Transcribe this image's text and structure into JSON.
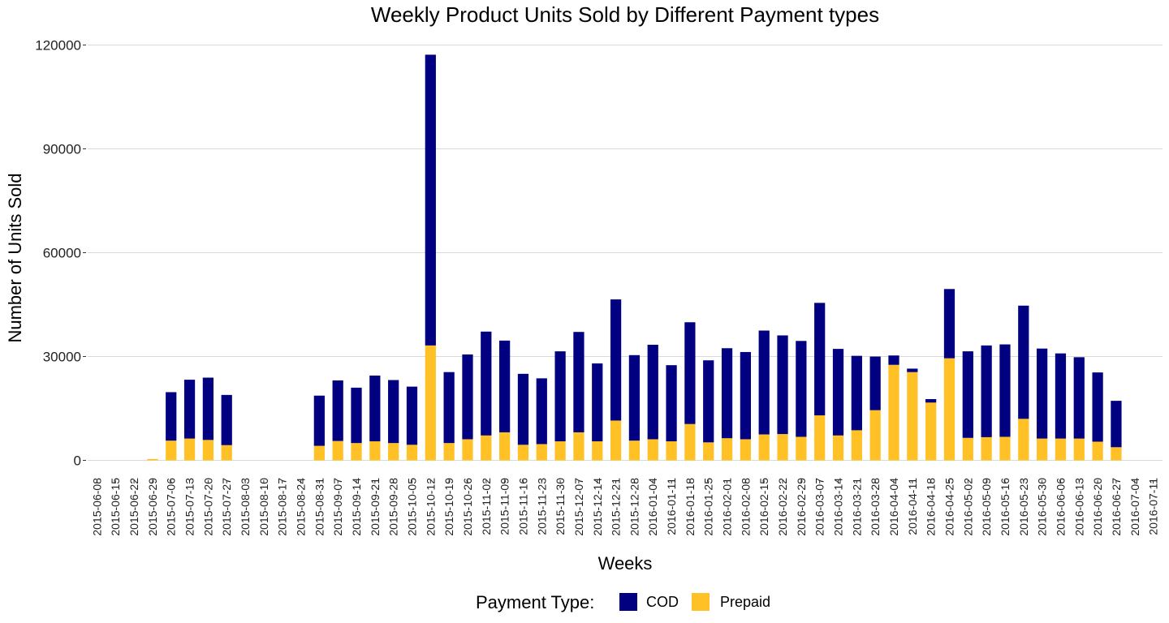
{
  "chart_data": {
    "type": "bar",
    "stacked": true,
    "title": "Weekly Product Units Sold by Different Payment types",
    "xlabel": "Weeks",
    "ylabel": "Number of Units Sold",
    "ylim": [
      0,
      120000
    ],
    "yticks": [
      0,
      30000,
      60000,
      90000,
      120000
    ],
    "grid": "horizontal",
    "legend": {
      "title": "Payment Type:",
      "placement": "bottom"
    },
    "categories": [
      "2015-06-08",
      "2015-06-15",
      "2015-06-22",
      "2015-06-29",
      "2015-07-06",
      "2015-07-13",
      "2015-07-20",
      "2015-07-27",
      "2015-08-03",
      "2015-08-10",
      "2015-08-17",
      "2015-08-24",
      "2015-08-31",
      "2015-09-07",
      "2015-09-14",
      "2015-09-21",
      "2015-09-28",
      "2015-10-05",
      "2015-10-12",
      "2015-10-19",
      "2015-10-26",
      "2015-11-02",
      "2015-11-09",
      "2015-11-16",
      "2015-11-23",
      "2015-11-30",
      "2015-12-07",
      "2015-12-14",
      "2015-12-21",
      "2015-12-28",
      "2016-01-04",
      "2016-01-11",
      "2016-01-18",
      "2016-01-25",
      "2016-02-01",
      "2016-02-08",
      "2016-02-15",
      "2016-02-22",
      "2016-02-29",
      "2016-03-07",
      "2016-03-14",
      "2016-03-21",
      "2016-03-28",
      "2016-04-04",
      "2016-04-11",
      "2016-04-18",
      "2016-04-25",
      "2016-05-02",
      "2016-05-09",
      "2016-05-16",
      "2016-05-23",
      "2016-05-30",
      "2016-06-06",
      "2016-06-13",
      "2016-06-20",
      "2016-06-27",
      "2016-07-04",
      "2016-07-11"
    ],
    "series": [
      {
        "name": "COD",
        "color": "#000080",
        "values": [
          0,
          0,
          0,
          0,
          14000,
          17000,
          18000,
          14500,
          0,
          0,
          0,
          0,
          14500,
          17500,
          16000,
          19000,
          18200,
          16800,
          84000,
          20500,
          24500,
          30000,
          26500,
          20500,
          19000,
          26000,
          29000,
          22500,
          35000,
          24700,
          27300,
          22000,
          29400,
          23700,
          26000,
          25200,
          30000,
          28500,
          27700,
          32500,
          25000,
          21500,
          15500,
          2700,
          1000,
          1000,
          20000,
          25000,
          26500,
          26700,
          32700,
          26000,
          24600,
          23500,
          20000,
          13400,
          0,
          0
        ]
      },
      {
        "name": "Prepaid",
        "color": "#FFC125",
        "values": [
          0,
          0,
          0,
          400,
          5700,
          6300,
          5900,
          4400,
          0,
          0,
          0,
          0,
          4200,
          5600,
          5000,
          5500,
          5000,
          4500,
          33200,
          5000,
          6100,
          7200,
          8100,
          4500,
          4700,
          5500,
          8100,
          5500,
          11500,
          5700,
          6100,
          5500,
          10500,
          5200,
          6400,
          6100,
          7500,
          7600,
          6800,
          13000,
          7200,
          8700,
          14500,
          27600,
          25500,
          16700,
          29500,
          6500,
          6700,
          6800,
          12000,
          6300,
          6300,
          6300,
          5400,
          3800,
          0,
          0
        ]
      }
    ]
  }
}
